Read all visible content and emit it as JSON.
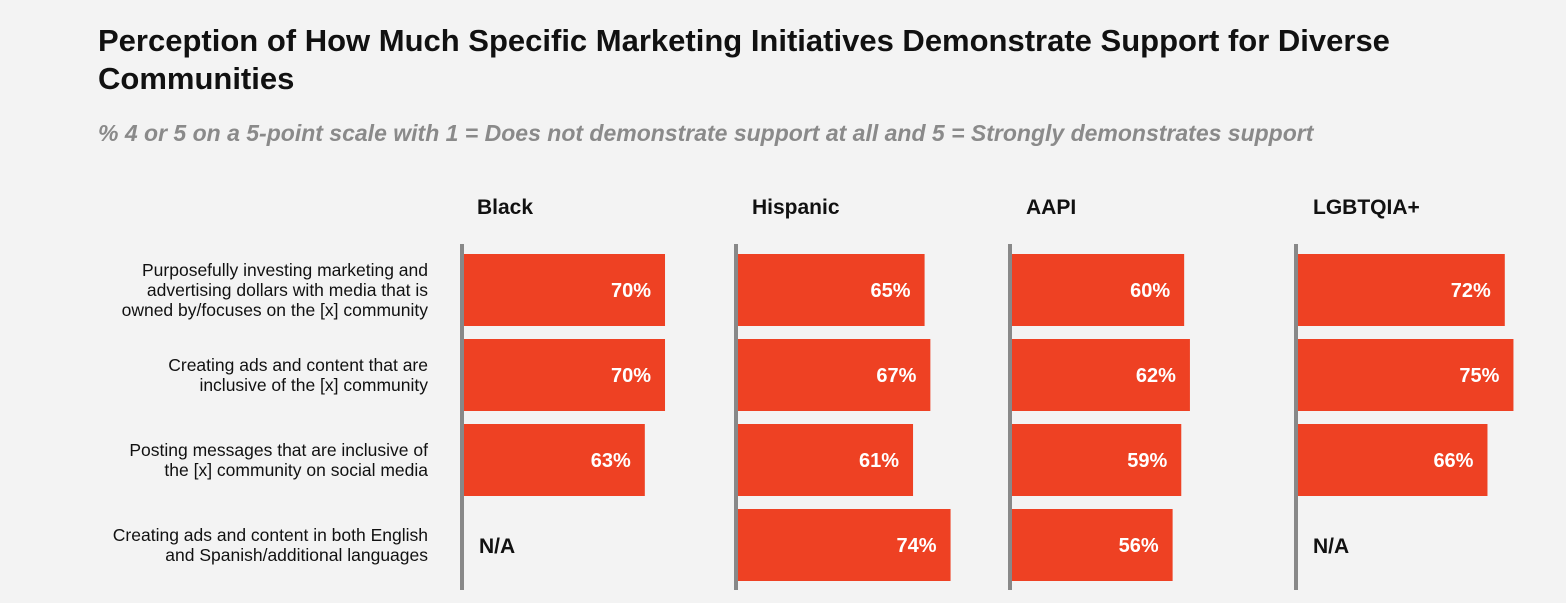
{
  "chart_data": {
    "type": "bar",
    "orientation": "horizontal",
    "title": "Perception of How Much Specific Marketing Initiatives Demonstrate Support for Diverse Communities",
    "subtitle": "% 4 or 5 on a 5-point scale with 1 = Does not demonstrate support at all and 5 = Strongly demonstrates support",
    "categories": [
      [
        "Purposefully investing marketing and",
        "advertising dollars with media that is",
        "owned by/focuses on the [x] community"
      ],
      [
        "Creating ads and content that are",
        "inclusive of the [x] community"
      ],
      [
        "Posting messages that are inclusive of",
        "the [x] community on social media"
      ],
      [
        "Creating ads and content in both English",
        "and Spanish/additional languages"
      ]
    ],
    "series": [
      {
        "name": "Black",
        "values": [
          70,
          70,
          63,
          null
        ],
        "labels": [
          "70%",
          "70%",
          "63%",
          "N/A"
        ]
      },
      {
        "name": "Hispanic",
        "values": [
          65,
          67,
          61,
          74
        ],
        "labels": [
          "65%",
          "67%",
          "61%",
          "74%"
        ]
      },
      {
        "name": "AAPI",
        "values": [
          60,
          62,
          59,
          56
        ],
        "labels": [
          "60%",
          "62%",
          "59%",
          "56%"
        ]
      },
      {
        "name": "LGBTQIA+",
        "values": [
          72,
          75,
          66,
          null
        ],
        "labels": [
          "72%",
          "75%",
          "66%",
          "N/A"
        ]
      }
    ],
    "xlim": [
      0,
      100
    ],
    "bar_color": "#ee4123",
    "axis_color": "#888888",
    "label_color": "#ffffff",
    "na_color": "#111111"
  }
}
